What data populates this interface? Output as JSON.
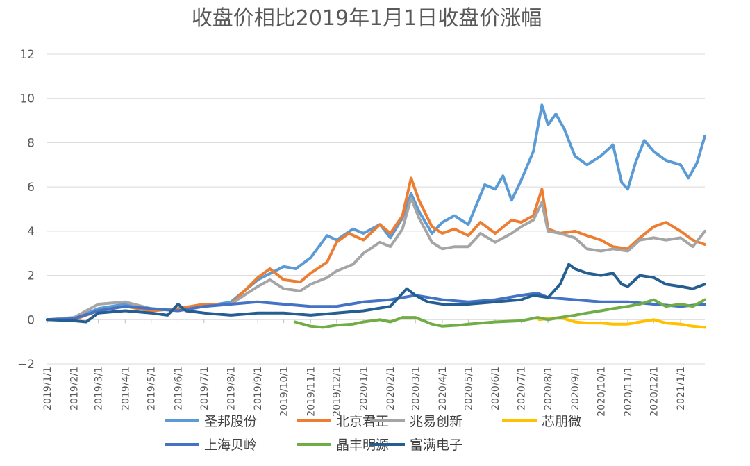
{
  "chart_data": {
    "type": "line",
    "title": "收盘价相比2019年1月1日收盘价涨幅",
    "xlabel": "",
    "ylabel": "",
    "xlim": [
      "2019-01-01",
      "2021-01-29"
    ],
    "ylim": [
      -2,
      12
    ],
    "y_ticks": [
      -2,
      0,
      2,
      4,
      6,
      8,
      10,
      12
    ],
    "y_tick_labels": [
      "−2",
      "0",
      "2",
      "4",
      "6",
      "8",
      "10",
      "12"
    ],
    "x_ticks": [
      "2019/1/1",
      "2019/2/1",
      "2019/3/1",
      "2019/4/1",
      "2019/5/1",
      "2019/6/1",
      "2019/7/1",
      "2019/8/1",
      "2019/9/1",
      "2019/10/1",
      "2019/11/1",
      "2019/12/1",
      "2020/1/1",
      "2020/2/1",
      "2020/3/1",
      "2020/4/1",
      "2020/5/1",
      "2020/6/1",
      "2020/7/1",
      "2020/8/1",
      "2020/9/1",
      "2020/10/1",
      "2020/11/1",
      "2020/12/1",
      "2021/1/1"
    ],
    "grid": "horizontal",
    "legend_position": "bottom",
    "series": [
      {
        "name": "圣邦股份",
        "color": "#5B9BD5",
        "points": [
          [
            "2019-01-01",
            0
          ],
          [
            "2019-02-01",
            0.05
          ],
          [
            "2019-03-01",
            0.5
          ],
          [
            "2019-04-01",
            0.7
          ],
          [
            "2019-05-01",
            0.4
          ],
          [
            "2019-06-01",
            0.5
          ],
          [
            "2019-07-01",
            0.6
          ],
          [
            "2019-08-01",
            0.8
          ],
          [
            "2019-09-01",
            1.8
          ],
          [
            "2019-10-01",
            2.4
          ],
          [
            "2019-10-15",
            2.3
          ],
          [
            "2019-11-01",
            2.8
          ],
          [
            "2019-11-20",
            3.8
          ],
          [
            "2019-12-01",
            3.6
          ],
          [
            "2019-12-20",
            4.1
          ],
          [
            "2020-01-01",
            3.9
          ],
          [
            "2020-01-20",
            4.3
          ],
          [
            "2020-02-01",
            3.7
          ],
          [
            "2020-02-15",
            4.6
          ],
          [
            "2020-02-25",
            5.7
          ],
          [
            "2020-03-05",
            4.9
          ],
          [
            "2020-03-20",
            3.9
          ],
          [
            "2020-04-01",
            4.4
          ],
          [
            "2020-04-15",
            4.7
          ],
          [
            "2020-05-01",
            4.3
          ],
          [
            "2020-05-20",
            6.1
          ],
          [
            "2020-06-01",
            5.9
          ],
          [
            "2020-06-10",
            6.5
          ],
          [
            "2020-06-20",
            5.4
          ],
          [
            "2020-07-01",
            6.3
          ],
          [
            "2020-07-15",
            7.6
          ],
          [
            "2020-07-25",
            9.7
          ],
          [
            "2020-08-01",
            8.8
          ],
          [
            "2020-08-10",
            9.3
          ],
          [
            "2020-08-20",
            8.6
          ],
          [
            "2020-09-01",
            7.4
          ],
          [
            "2020-09-15",
            7.0
          ],
          [
            "2020-10-01",
            7.4
          ],
          [
            "2020-10-15",
            7.9
          ],
          [
            "2020-10-25",
            6.2
          ],
          [
            "2020-11-01",
            5.9
          ],
          [
            "2020-11-10",
            7.1
          ],
          [
            "2020-11-20",
            8.1
          ],
          [
            "2020-12-01",
            7.6
          ],
          [
            "2020-12-15",
            7.2
          ],
          [
            "2021-01-01",
            7.0
          ],
          [
            "2021-01-10",
            6.4
          ],
          [
            "2021-01-20",
            7.1
          ],
          [
            "2021-01-29",
            8.3
          ]
        ]
      },
      {
        "name": "北京君正",
        "color": "#ED7D31",
        "points": [
          [
            "2019-01-01",
            0
          ],
          [
            "2019-02-01",
            0.0
          ],
          [
            "2019-03-01",
            0.4
          ],
          [
            "2019-04-01",
            0.6
          ],
          [
            "2019-05-01",
            0.4
          ],
          [
            "2019-06-01",
            0.5
          ],
          [
            "2019-07-01",
            0.7
          ],
          [
            "2019-08-01",
            0.7
          ],
          [
            "2019-09-01",
            1.9
          ],
          [
            "2019-09-15",
            2.3
          ],
          [
            "2019-10-01",
            1.8
          ],
          [
            "2019-10-20",
            1.7
          ],
          [
            "2019-11-01",
            2.1
          ],
          [
            "2019-11-20",
            2.6
          ],
          [
            "2019-12-01",
            3.5
          ],
          [
            "2019-12-15",
            3.9
          ],
          [
            "2020-01-01",
            3.6
          ],
          [
            "2020-01-20",
            4.3
          ],
          [
            "2020-02-01",
            3.9
          ],
          [
            "2020-02-15",
            4.7
          ],
          [
            "2020-02-25",
            6.4
          ],
          [
            "2020-03-05",
            5.4
          ],
          [
            "2020-03-20",
            4.2
          ],
          [
            "2020-04-01",
            3.9
          ],
          [
            "2020-04-15",
            4.1
          ],
          [
            "2020-05-01",
            3.8
          ],
          [
            "2020-05-15",
            4.4
          ],
          [
            "2020-06-01",
            3.9
          ],
          [
            "2020-06-20",
            4.5
          ],
          [
            "2020-07-01",
            4.4
          ],
          [
            "2020-07-15",
            4.7
          ],
          [
            "2020-07-25",
            5.9
          ],
          [
            "2020-08-01",
            4.1
          ],
          [
            "2020-08-15",
            3.9
          ],
          [
            "2020-09-01",
            4.0
          ],
          [
            "2020-09-15",
            3.8
          ],
          [
            "2020-10-01",
            3.6
          ],
          [
            "2020-10-15",
            3.3
          ],
          [
            "2020-11-01",
            3.2
          ],
          [
            "2020-11-15",
            3.7
          ],
          [
            "2020-12-01",
            4.2
          ],
          [
            "2020-12-15",
            4.4
          ],
          [
            "2021-01-01",
            4.0
          ],
          [
            "2021-01-15",
            3.6
          ],
          [
            "2021-01-29",
            3.4
          ]
        ]
      },
      {
        "name": "兆易创新",
        "color": "#A5A5A5",
        "points": [
          [
            "2019-01-01",
            0
          ],
          [
            "2019-02-01",
            0.1
          ],
          [
            "2019-03-01",
            0.7
          ],
          [
            "2019-04-01",
            0.8
          ],
          [
            "2019-05-01",
            0.5
          ],
          [
            "2019-06-01",
            0.4
          ],
          [
            "2019-07-01",
            0.6
          ],
          [
            "2019-08-01",
            0.7
          ],
          [
            "2019-08-20",
            1.2
          ],
          [
            "2019-09-01",
            1.5
          ],
          [
            "2019-09-15",
            1.8
          ],
          [
            "2019-10-01",
            1.4
          ],
          [
            "2019-10-20",
            1.3
          ],
          [
            "2019-11-01",
            1.6
          ],
          [
            "2019-11-20",
            1.9
          ],
          [
            "2019-12-01",
            2.2
          ],
          [
            "2019-12-20",
            2.5
          ],
          [
            "2020-01-01",
            3.0
          ],
          [
            "2020-01-20",
            3.5
          ],
          [
            "2020-02-01",
            3.3
          ],
          [
            "2020-02-15",
            4.1
          ],
          [
            "2020-02-25",
            5.5
          ],
          [
            "2020-03-05",
            4.6
          ],
          [
            "2020-03-20",
            3.5
          ],
          [
            "2020-04-01",
            3.2
          ],
          [
            "2020-04-15",
            3.3
          ],
          [
            "2020-05-01",
            3.3
          ],
          [
            "2020-05-15",
            3.9
          ],
          [
            "2020-06-01",
            3.5
          ],
          [
            "2020-06-20",
            3.9
          ],
          [
            "2020-07-01",
            4.2
          ],
          [
            "2020-07-15",
            4.5
          ],
          [
            "2020-07-25",
            5.3
          ],
          [
            "2020-08-01",
            4.0
          ],
          [
            "2020-08-15",
            3.9
          ],
          [
            "2020-09-01",
            3.7
          ],
          [
            "2020-09-15",
            3.2
          ],
          [
            "2020-10-01",
            3.1
          ],
          [
            "2020-10-15",
            3.2
          ],
          [
            "2020-11-01",
            3.1
          ],
          [
            "2020-11-15",
            3.6
          ],
          [
            "2020-12-01",
            3.7
          ],
          [
            "2020-12-15",
            3.6
          ],
          [
            "2021-01-01",
            3.7
          ],
          [
            "2021-01-15",
            3.3
          ],
          [
            "2021-01-29",
            4.0
          ]
        ]
      },
      {
        "name": "芯朋微",
        "color": "#FFC000",
        "points": [
          [
            "2020-07-22",
            0
          ],
          [
            "2020-08-01",
            0.05
          ],
          [
            "2020-08-15",
            0.1
          ],
          [
            "2020-09-01",
            -0.1
          ],
          [
            "2020-09-15",
            -0.15
          ],
          [
            "2020-10-01",
            -0.15
          ],
          [
            "2020-10-15",
            -0.2
          ],
          [
            "2020-11-01",
            -0.2
          ],
          [
            "2020-11-15",
            -0.1
          ],
          [
            "2020-12-01",
            0.0
          ],
          [
            "2020-12-15",
            -0.15
          ],
          [
            "2021-01-01",
            -0.2
          ],
          [
            "2021-01-15",
            -0.3
          ],
          [
            "2021-01-29",
            -0.35
          ]
        ]
      },
      {
        "name": "上海贝岭",
        "color": "#4472C4",
        "points": [
          [
            "2019-01-01",
            0
          ],
          [
            "2019-02-01",
            0.05
          ],
          [
            "2019-03-01",
            0.4
          ],
          [
            "2019-04-01",
            0.6
          ],
          [
            "2019-05-01",
            0.5
          ],
          [
            "2019-06-01",
            0.4
          ],
          [
            "2019-07-01",
            0.6
          ],
          [
            "2019-08-01",
            0.7
          ],
          [
            "2019-09-01",
            0.8
          ],
          [
            "2019-10-01",
            0.7
          ],
          [
            "2019-11-01",
            0.6
          ],
          [
            "2019-12-01",
            0.6
          ],
          [
            "2020-01-01",
            0.8
          ],
          [
            "2020-02-01",
            0.9
          ],
          [
            "2020-03-01",
            1.1
          ],
          [
            "2020-04-01",
            0.9
          ],
          [
            "2020-05-01",
            0.8
          ],
          [
            "2020-06-01",
            0.9
          ],
          [
            "2020-07-01",
            1.1
          ],
          [
            "2020-07-20",
            1.2
          ],
          [
            "2020-08-01",
            1.0
          ],
          [
            "2020-09-01",
            0.9
          ],
          [
            "2020-10-01",
            0.8
          ],
          [
            "2020-11-01",
            0.8
          ],
          [
            "2020-12-01",
            0.7
          ],
          [
            "2021-01-01",
            0.6
          ],
          [
            "2021-01-29",
            0.7
          ]
        ]
      },
      {
        "name": "晶丰明源",
        "color": "#70AD47",
        "points": [
          [
            "2019-10-14",
            -0.1
          ],
          [
            "2019-11-01",
            -0.3
          ],
          [
            "2019-11-15",
            -0.35
          ],
          [
            "2019-12-01",
            -0.25
          ],
          [
            "2019-12-20",
            -0.2
          ],
          [
            "2020-01-01",
            -0.1
          ],
          [
            "2020-01-20",
            0.0
          ],
          [
            "2020-02-01",
            -0.1
          ],
          [
            "2020-02-15",
            0.1
          ],
          [
            "2020-03-01",
            0.1
          ],
          [
            "2020-03-20",
            -0.2
          ],
          [
            "2020-04-01",
            -0.3
          ],
          [
            "2020-04-20",
            -0.25
          ],
          [
            "2020-05-01",
            -0.2
          ],
          [
            "2020-06-01",
            -0.1
          ],
          [
            "2020-07-01",
            -0.05
          ],
          [
            "2020-07-20",
            0.1
          ],
          [
            "2020-08-01",
            0.0
          ],
          [
            "2020-08-15",
            0.1
          ],
          [
            "2020-09-01",
            0.2
          ],
          [
            "2020-09-15",
            0.3
          ],
          [
            "2020-10-01",
            0.4
          ],
          [
            "2020-10-15",
            0.5
          ],
          [
            "2020-11-01",
            0.6
          ],
          [
            "2020-11-15",
            0.7
          ],
          [
            "2020-12-01",
            0.9
          ],
          [
            "2020-12-15",
            0.6
          ],
          [
            "2021-01-01",
            0.7
          ],
          [
            "2021-01-15",
            0.6
          ],
          [
            "2021-01-29",
            0.9
          ]
        ]
      },
      {
        "name": "富满电子",
        "color": "#255E91",
        "points": [
          [
            "2019-01-01",
            0
          ],
          [
            "2019-02-01",
            -0.05
          ],
          [
            "2019-02-15",
            -0.1
          ],
          [
            "2019-03-01",
            0.3
          ],
          [
            "2019-04-01",
            0.4
          ],
          [
            "2019-05-01",
            0.3
          ],
          [
            "2019-05-20",
            0.2
          ],
          [
            "2019-06-01",
            0.7
          ],
          [
            "2019-06-10",
            0.4
          ],
          [
            "2019-07-01",
            0.3
          ],
          [
            "2019-08-01",
            0.2
          ],
          [
            "2019-09-01",
            0.3
          ],
          [
            "2019-10-01",
            0.3
          ],
          [
            "2019-11-01",
            0.2
          ],
          [
            "2019-12-01",
            0.3
          ],
          [
            "2020-01-01",
            0.4
          ],
          [
            "2020-02-01",
            0.6
          ],
          [
            "2020-02-20",
            1.4
          ],
          [
            "2020-03-01",
            1.1
          ],
          [
            "2020-03-15",
            0.8
          ],
          [
            "2020-04-01",
            0.7
          ],
          [
            "2020-05-01",
            0.7
          ],
          [
            "2020-06-01",
            0.8
          ],
          [
            "2020-07-01",
            0.9
          ],
          [
            "2020-07-15",
            1.1
          ],
          [
            "2020-08-01",
            1.0
          ],
          [
            "2020-08-15",
            1.6
          ],
          [
            "2020-08-25",
            2.5
          ],
          [
            "2020-09-01",
            2.3
          ],
          [
            "2020-09-15",
            2.1
          ],
          [
            "2020-10-01",
            2.0
          ],
          [
            "2020-10-15",
            2.1
          ],
          [
            "2020-10-25",
            1.6
          ],
          [
            "2020-11-01",
            1.5
          ],
          [
            "2020-11-15",
            2.0
          ],
          [
            "2020-12-01",
            1.9
          ],
          [
            "2020-12-15",
            1.6
          ],
          [
            "2021-01-01",
            1.5
          ],
          [
            "2021-01-15",
            1.4
          ],
          [
            "2021-01-29",
            1.6
          ]
        ]
      }
    ]
  }
}
